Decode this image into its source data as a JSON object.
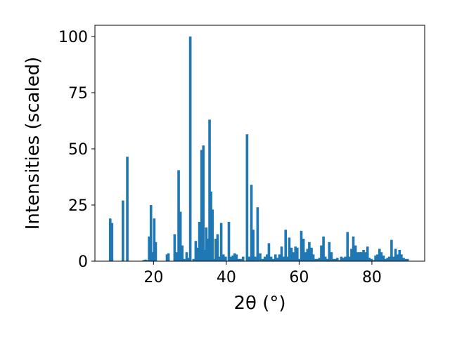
{
  "chart_data": {
    "type": "bar",
    "title": "",
    "xlabel": "2θ (°)",
    "ylabel": "Intensities (scaled)",
    "xlim": [
      3.9,
      94.5
    ],
    "ylim": [
      0,
      105
    ],
    "xticks": [
      20,
      40,
      60,
      80
    ],
    "yticks": [
      0,
      25,
      50,
      75,
      100
    ],
    "grid": false,
    "legend": "none",
    "bar_color": "#1f77b4",
    "bar_width": 0.7,
    "x": [
      8.1,
      8.6,
      11.6,
      12.8,
      17.3,
      17.8,
      18.4,
      18.8,
      19.3,
      19.8,
      20.2,
      20.6,
      23.7,
      24.1,
      25.8,
      26.4,
      26.9,
      27.4,
      27.9,
      28.4,
      29.1,
      29.6,
      30.1,
      31.0,
      31.6,
      32.1,
      32.6,
      33.2,
      33.7,
      34.1,
      34.5,
      35.0,
      35.4,
      35.8,
      36.2,
      36.6,
      37.1,
      37.6,
      38.0,
      38.6,
      39.2,
      39.8,
      40.7,
      41.2,
      41.8,
      42.3,
      42.8,
      43.4,
      43.9,
      44.6,
      45.7,
      46.3,
      46.9,
      47.4,
      47.9,
      48.6,
      49.3,
      50.0,
      50.6,
      51.2,
      51.7,
      52.3,
      52.9,
      53.5,
      54.1,
      54.6,
      55.2,
      55.8,
      56.3,
      56.8,
      57.3,
      57.9,
      58.4,
      59.0,
      59.5,
      60.1,
      60.6,
      61.2,
      61.7,
      62.3,
      62.8,
      63.4,
      63.9,
      64.5,
      65.0,
      65.6,
      66.1,
      66.7,
      67.2,
      67.8,
      68.3,
      68.9,
      69.4,
      70.0,
      70.5,
      71.1,
      71.6,
      72.2,
      72.7,
      73.3,
      73.8,
      74.4,
      74.9,
      75.5,
      76.0,
      76.6,
      77.1,
      77.7,
      78.2,
      78.8,
      79.3,
      79.9,
      80.4,
      81.0,
      81.5,
      82.1,
      82.6,
      83.2,
      83.7,
      84.3,
      84.8,
      85.4,
      85.9,
      86.5,
      87.0,
      87.6,
      88.1,
      88.7,
      89.2,
      89.8
    ],
    "values": [
      19,
      17,
      27,
      46.5,
      0.5,
      0.7,
      0.5,
      11,
      25,
      4,
      19,
      8.5,
      3,
      3.5,
      12,
      4,
      40.5,
      22,
      7,
      1,
      4,
      1.5,
      100,
      1,
      9,
      6,
      17.5,
      49.5,
      51.5,
      5,
      15,
      10,
      63,
      31,
      23,
      1,
      10,
      12,
      2,
      17,
      3,
      2,
      17.5,
      2,
      2.5,
      3.5,
      3,
      1,
      1,
      2,
      56.5,
      2,
      34,
      14,
      2,
      24,
      3.5,
      1,
      2,
      3,
      8,
      2,
      1,
      3,
      1.5,
      3,
      6.5,
      2,
      14,
      2,
      10.5,
      6,
      4,
      6.5,
      6,
      1,
      13.5,
      10,
      4,
      5.5,
      8.5,
      6,
      3,
      1,
      1,
      1.5,
      7,
      11,
      2,
      1,
      8.5,
      4,
      1,
      1,
      1.5,
      0.5,
      2,
      1.5,
      2,
      13,
      2,
      5.5,
      11,
      7,
      4,
      4,
      4,
      5,
      4,
      6.5,
      1.5,
      1,
      0.5,
      2.5,
      3,
      5.5,
      4,
      2.5,
      1,
      1.5,
      2,
      9.5,
      2,
      5.5,
      3,
      5,
      3,
      1.5,
      1,
      1
    ]
  }
}
